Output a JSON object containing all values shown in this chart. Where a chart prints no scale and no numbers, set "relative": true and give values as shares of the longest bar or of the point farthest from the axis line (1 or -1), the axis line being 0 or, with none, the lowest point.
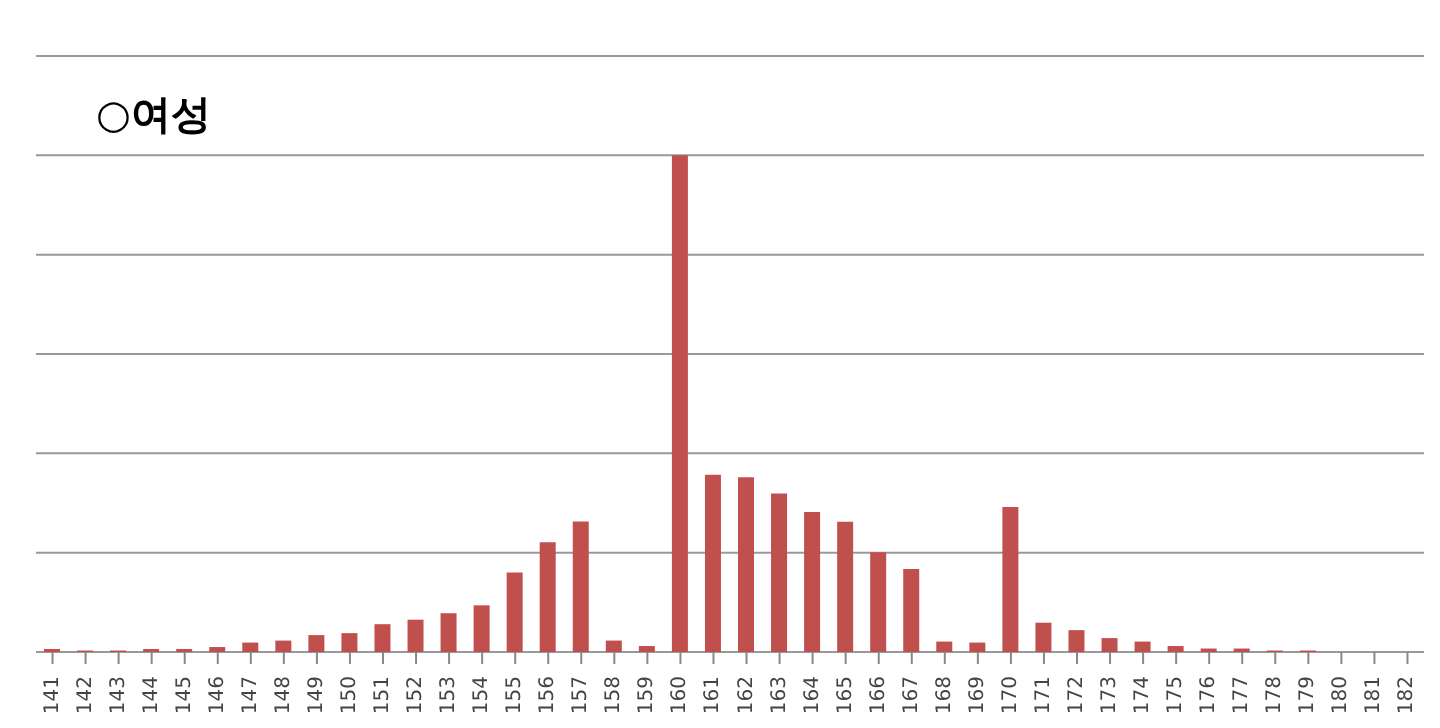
{
  "chart_data": {
    "type": "bar",
    "title": "○여성",
    "relative": true,
    "grid": "y",
    "color": "#c0504d",
    "categories": [
      "141",
      "142",
      "143",
      "144",
      "145",
      "146",
      "147",
      "148",
      "149",
      "150",
      "151",
      "152",
      "153",
      "154",
      "155",
      "156",
      "157",
      "158",
      "159",
      "160",
      "161",
      "162",
      "163",
      "164",
      "165",
      "166",
      "167",
      "168",
      "169",
      "170",
      "171",
      "172",
      "173",
      "174",
      "175",
      "176",
      "177",
      "178",
      "179",
      "180",
      "181",
      "182"
    ],
    "values": [
      0.006,
      0.003,
      0.003,
      0.006,
      0.006,
      0.01,
      0.019,
      0.023,
      0.034,
      0.038,
      0.056,
      0.065,
      0.078,
      0.094,
      0.16,
      0.221,
      0.263,
      0.023,
      0.012,
      1,
      0.357,
      0.352,
      0.319,
      0.282,
      0.262,
      0.201,
      0.167,
      0.021,
      0.019,
      0.292,
      0.059,
      0.044,
      0.028,
      0.021,
      0.012,
      0.007,
      0.007,
      0.003,
      0.003,
      0,
      0,
      0
    ]
  }
}
